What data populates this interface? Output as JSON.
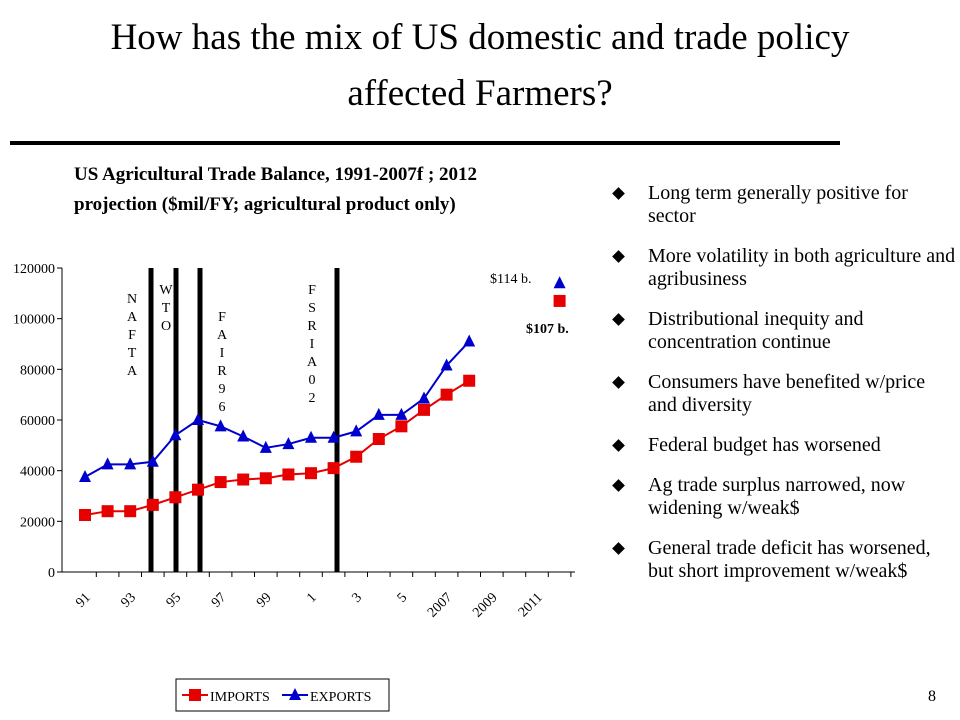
{
  "title": "How has the mix of US domestic and trade policy affected Farmers?",
  "page_number": "8",
  "bullets": [
    "Long term generally positive for sector",
    "More volatility in both agriculture and agribusiness",
    "Distributional inequity and concentration continue",
    "Consumers have benefited w/price and diversity",
    "Federal budget has worsened",
    "Ag trade surplus narrowed, now widening w/weak$",
    "General trade deficit has worsened, but short improvement w/weak$"
  ],
  "chart_data": {
    "type": "line",
    "title": "US Agricultural Trade Balance, 1991-2007f ; 2012 projection ($mil/FY; agricultural product only)",
    "categories": [
      "91",
      null,
      "93",
      null,
      "95",
      null,
      "97",
      null,
      "99",
      null,
      "1",
      null,
      "3",
      null,
      "5",
      null,
      "2007",
      null,
      "2009",
      null,
      "2011",
      null
    ],
    "series": [
      {
        "name": "IMPORTS",
        "color": "#e60000",
        "marker": "square",
        "values": [
          22500,
          24000,
          24000,
          26500,
          29500,
          32500,
          35500,
          36500,
          37000,
          38500,
          39000,
          41000,
          45500,
          52500,
          57500,
          64000,
          70000,
          75500,
          null,
          null,
          null,
          107000
        ]
      },
      {
        "name": "EXPORTS",
        "color": "#0000cc",
        "marker": "triangle",
        "values": [
          37500,
          42500,
          42500,
          43500,
          54000,
          60000,
          57500,
          53500,
          49000,
          50500,
          53000,
          53000,
          55500,
          62000,
          62000,
          68500,
          81500,
          91000,
          null,
          null,
          null,
          114000
        ]
      }
    ],
    "ylim": [
      0,
      120000
    ],
    "yticks": [
      0,
      20000,
      40000,
      60000,
      80000,
      100000,
      120000
    ],
    "events": [
      "NAFTA",
      "WTO",
      "FAIR96",
      "FSRIA02"
    ],
    "annotations": [
      "$114 b.",
      "$107 b."
    ]
  }
}
